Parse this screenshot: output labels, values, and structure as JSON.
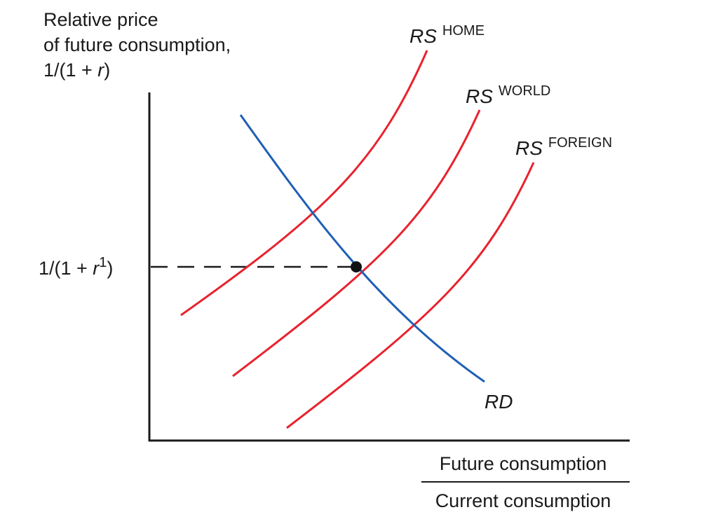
{
  "y_axis_label": {
    "line1": "Relative price",
    "line2": "of future consumption,",
    "line3_pre": "1/(1 + ",
    "line3_var": "r",
    "line3_post": ")"
  },
  "x_axis_label": {
    "numerator": "Future consumption",
    "denominator": "Current consumption"
  },
  "equilibrium_label": {
    "pre": "1/(1 + ",
    "var": "r",
    "sup": "1",
    "post": ")"
  },
  "curves": {
    "rs_home": {
      "main": "RS",
      "sup": "HOME",
      "color": "#e8222e"
    },
    "rs_world": {
      "main": "RS",
      "sup": "WORLD",
      "color": "#e8222e"
    },
    "rs_foreign": {
      "main": "RS",
      "sup": "FOREIGN",
      "color": "#e8222e"
    },
    "rd": {
      "main": "RD",
      "color": "#1f5fb5"
    }
  },
  "colors": {
    "supply": "#e8222e",
    "demand": "#1f5fb5",
    "axis": "#1a1a1a",
    "dashed": "#1a1a1a",
    "point": "#111111"
  }
}
